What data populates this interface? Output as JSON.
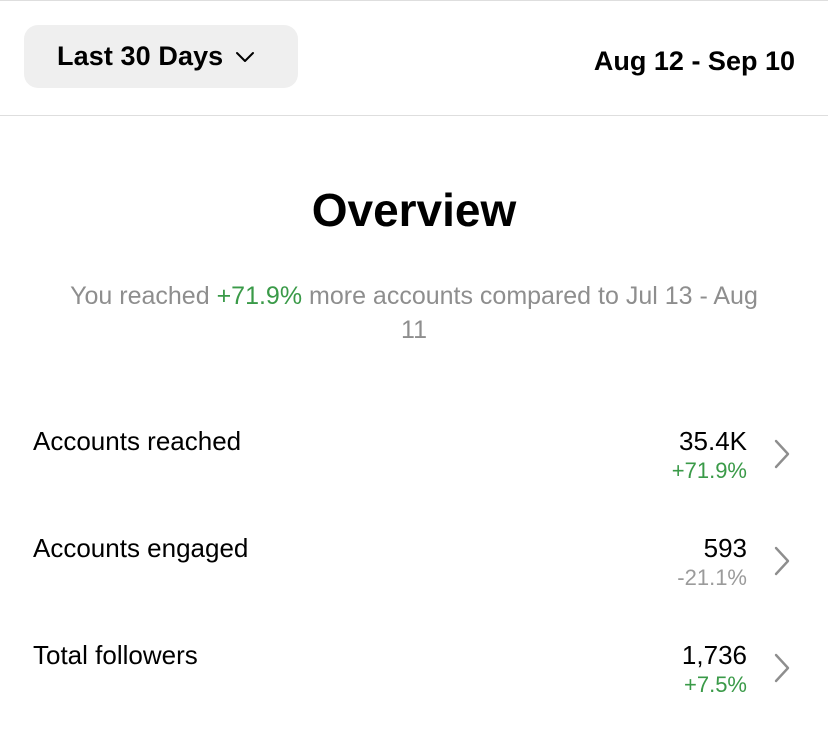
{
  "header": {
    "range_selector_label": "Last 30 Days",
    "date_range": "Aug 12 - Sep 10"
  },
  "overview": {
    "title": "Overview",
    "summary_prefix": "You reached ",
    "summary_change": "+71.9%",
    "summary_suffix": " more accounts compared to Jul 13 - Aug 11"
  },
  "metrics": [
    {
      "label": "Accounts reached",
      "value": "35.4K",
      "change": "+71.9%",
      "trend": "positive"
    },
    {
      "label": "Accounts engaged",
      "value": "593",
      "change": "-21.1%",
      "trend": "negative"
    },
    {
      "label": "Total followers",
      "value": "1,736",
      "change": "+7.5%",
      "trend": "positive"
    }
  ],
  "colors": {
    "positive": "#3a9a48",
    "negative": "#9b9b9b",
    "muted_text": "#8e8e8e",
    "button_bg": "#efefef"
  },
  "icons": {
    "range_dropdown": "chevron-down-icon",
    "row_arrow": "chevron-right-icon"
  }
}
